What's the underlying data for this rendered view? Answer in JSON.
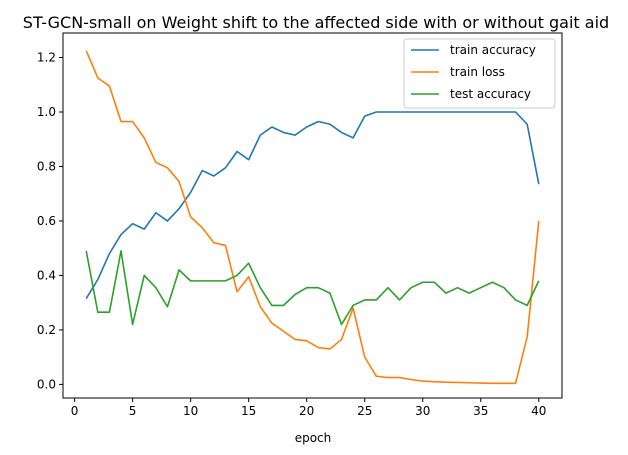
{
  "chart_data": {
    "type": "line",
    "title": "ST-GCN-small on Weight shift to the affected side with or without gait aid",
    "xlabel": "epoch",
    "ylabel": "",
    "xlim": [
      -1,
      42
    ],
    "ylim": [
      -0.05,
      1.29
    ],
    "xticks": [
      0,
      5,
      10,
      15,
      20,
      25,
      30,
      35,
      40
    ],
    "yticks": [
      0.0,
      0.2,
      0.4,
      0.6,
      0.8,
      1.0,
      1.2
    ],
    "ytick_labels": [
      "0.0",
      "0.2",
      "0.4",
      "0.6",
      "0.8",
      "1.0",
      "1.2"
    ],
    "grid": false,
    "legend_position": "upper right",
    "x": [
      1,
      2,
      3,
      4,
      5,
      6,
      7,
      8,
      9,
      10,
      11,
      12,
      13,
      14,
      15,
      16,
      17,
      18,
      19,
      20,
      21,
      22,
      23,
      24,
      25,
      26,
      27,
      28,
      29,
      30,
      31,
      32,
      33,
      34,
      35,
      36,
      37,
      38,
      39,
      40
    ],
    "series": [
      {
        "name": "train accuracy",
        "color": "#1f77b4",
        "values": [
          0.315,
          0.385,
          0.48,
          0.55,
          0.59,
          0.57,
          0.63,
          0.6,
          0.645,
          0.705,
          0.785,
          0.765,
          0.795,
          0.855,
          0.825,
          0.915,
          0.945,
          0.925,
          0.915,
          0.945,
          0.965,
          0.955,
          0.925,
          0.905,
          0.985,
          1.0,
          1.0,
          1.0,
          1.0,
          1.0,
          1.0,
          1.0,
          1.0,
          1.0,
          1.0,
          1.0,
          1.0,
          1.0,
          0.955,
          0.735
        ]
      },
      {
        "name": "train loss",
        "color": "#ff7f0e",
        "values": [
          1.225,
          1.125,
          1.095,
          0.965,
          0.965,
          0.905,
          0.815,
          0.795,
          0.745,
          0.615,
          0.575,
          0.52,
          0.51,
          0.34,
          0.395,
          0.285,
          0.225,
          0.195,
          0.165,
          0.16,
          0.135,
          0.13,
          0.165,
          0.28,
          0.1,
          0.03,
          0.025,
          0.025,
          0.018,
          0.012,
          0.01,
          0.008,
          0.007,
          0.006,
          0.005,
          0.004,
          0.004,
          0.004,
          0.175,
          0.6
        ]
      },
      {
        "name": "test accuracy",
        "color": "#2ca02c",
        "values": [
          0.49,
          0.265,
          0.265,
          0.49,
          0.22,
          0.4,
          0.355,
          0.285,
          0.42,
          0.38,
          0.38,
          0.38,
          0.38,
          0.4,
          0.445,
          0.355,
          0.29,
          0.29,
          0.33,
          0.355,
          0.355,
          0.335,
          0.22,
          0.29,
          0.31,
          0.31,
          0.355,
          0.31,
          0.355,
          0.375,
          0.375,
          0.335,
          0.355,
          0.335,
          0.355,
          0.375,
          0.355,
          0.31,
          0.29,
          0.38
        ]
      }
    ]
  }
}
